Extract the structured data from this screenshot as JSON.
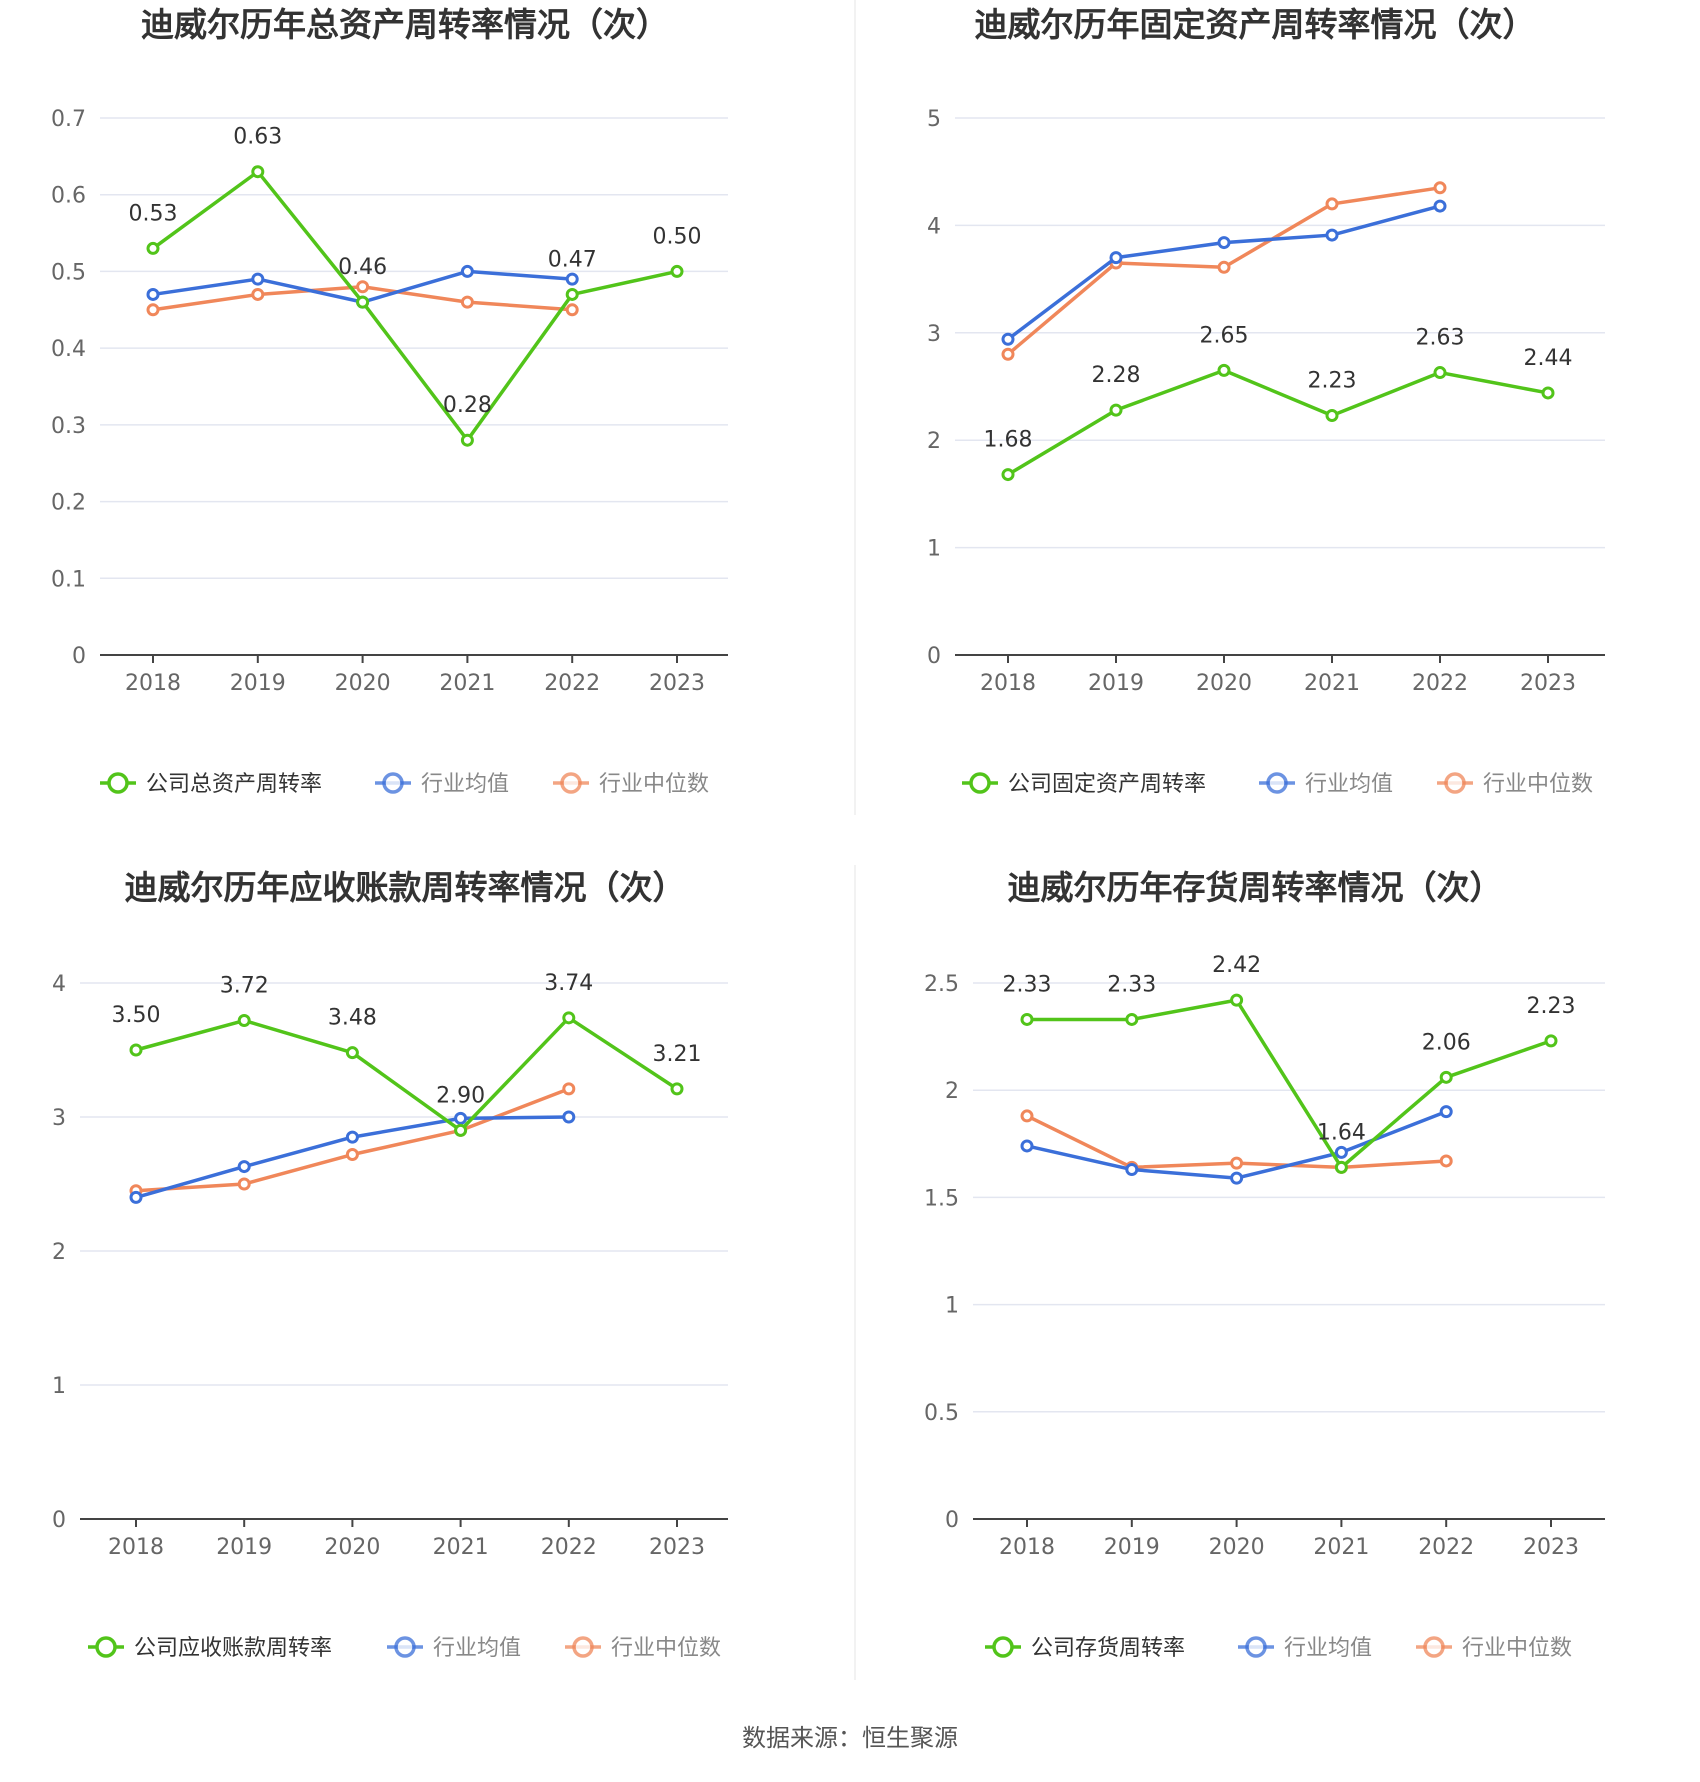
{
  "colors": {
    "company": "#52c41a",
    "avg": "#3b6fd9",
    "median": "#f0875a",
    "grid": "#e3e6f0",
    "axis": "#444444",
    "divider": "#eeeeee"
  },
  "source": "数据来源：恒生聚源",
  "chart_data": [
    {
      "type": "line",
      "title": "迪威尔历年总资产周转率情况（次）",
      "categories": [
        "2018",
        "2019",
        "2020",
        "2021",
        "2022",
        "2023"
      ],
      "ylim": [
        0,
        0.7
      ],
      "yticks": [
        0,
        0.1,
        0.2,
        0.3,
        0.4,
        0.5,
        0.6,
        0.7
      ],
      "ytick_labels": [
        "0",
        "0.1",
        "0.2",
        "0.3",
        "0.4",
        "0.5",
        "0.6",
        "0.7"
      ],
      "grid": true,
      "legend_position": "bottom",
      "series": [
        {
          "name": "公司总资产周转率",
          "values": [
            0.53,
            0.63,
            0.46,
            0.28,
            0.47,
            0.5
          ],
          "labels": [
            "0.53",
            "0.63",
            "0.46",
            "0.28",
            "0.47",
            "0.50"
          ]
        },
        {
          "name": "行业均值",
          "values": [
            0.47,
            0.49,
            0.46,
            0.5,
            0.49,
            null
          ]
        },
        {
          "name": "行业中位数",
          "values": [
            0.45,
            0.47,
            0.48,
            0.46,
            0.45,
            null
          ]
        }
      ]
    },
    {
      "type": "line",
      "title": "迪威尔历年固定资产周转率情况（次）",
      "categories": [
        "2018",
        "2019",
        "2020",
        "2021",
        "2022",
        "2023"
      ],
      "ylim": [
        0,
        5
      ],
      "yticks": [
        0,
        1,
        2,
        3,
        4,
        5
      ],
      "ytick_labels": [
        "0",
        "1",
        "2",
        "3",
        "4",
        "5"
      ],
      "grid": true,
      "legend_position": "bottom",
      "series": [
        {
          "name": "公司固定资产周转率",
          "values": [
            1.68,
            2.28,
            2.65,
            2.23,
            2.63,
            2.44
          ],
          "labels": [
            "1.68",
            "2.28",
            "2.65",
            "2.23",
            "2.63",
            "2.44"
          ]
        },
        {
          "name": "行业均值",
          "values": [
            2.94,
            3.7,
            3.84,
            3.91,
            4.18,
            null
          ]
        },
        {
          "name": "行业中位数",
          "values": [
            2.8,
            3.65,
            3.61,
            4.2,
            4.35,
            null
          ]
        }
      ]
    },
    {
      "type": "line",
      "title": "迪威尔历年应收账款周转率情况（次）",
      "categories": [
        "2018",
        "2019",
        "2020",
        "2021",
        "2022",
        "2023"
      ],
      "ylim": [
        0,
        4
      ],
      "yticks": [
        0,
        1,
        2,
        3,
        4
      ],
      "ytick_labels": [
        "0",
        "1",
        "2",
        "3",
        "4"
      ],
      "grid": true,
      "legend_position": "bottom",
      "series": [
        {
          "name": "公司应收账款周转率",
          "values": [
            3.5,
            3.72,
            3.48,
            2.9,
            3.74,
            3.21
          ],
          "labels": [
            "3.50",
            "3.72",
            "3.48",
            "2.90",
            "3.74",
            "3.21"
          ]
        },
        {
          "name": "行业均值",
          "values": [
            2.4,
            2.63,
            2.85,
            2.99,
            3.0,
            null
          ]
        },
        {
          "name": "行业中位数",
          "values": [
            2.45,
            2.5,
            2.72,
            2.9,
            3.21,
            null
          ]
        }
      ]
    },
    {
      "type": "line",
      "title": "迪威尔历年存货周转率情况（次）",
      "categories": [
        "2018",
        "2019",
        "2020",
        "2021",
        "2022",
        "2023"
      ],
      "ylim": [
        0,
        2.5
      ],
      "yticks": [
        0,
        0.5,
        1,
        1.5,
        2,
        2.5
      ],
      "ytick_labels": [
        "0",
        "0.5",
        "1",
        "1.5",
        "2",
        "2.5"
      ],
      "grid": true,
      "legend_position": "bottom",
      "series": [
        {
          "name": "公司存货周转率",
          "values": [
            2.33,
            2.33,
            2.42,
            1.64,
            2.06,
            2.23
          ],
          "labels": [
            "2.33",
            "2.33",
            "2.42",
            "1.64",
            "2.06",
            "2.23"
          ]
        },
        {
          "name": "行业均值",
          "values": [
            1.74,
            1.63,
            1.59,
            1.71,
            1.9,
            null
          ]
        },
        {
          "name": "行业中位数",
          "values": [
            1.88,
            1.64,
            1.66,
            1.64,
            1.67,
            null
          ]
        }
      ]
    }
  ]
}
